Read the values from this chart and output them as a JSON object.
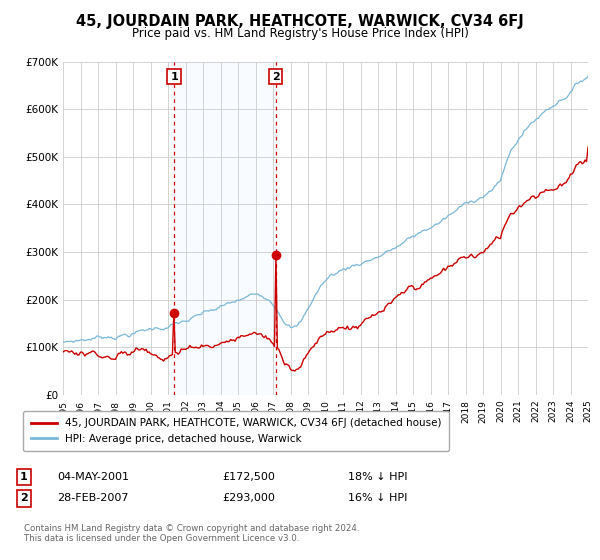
{
  "title": "45, JOURDAIN PARK, HEATHCOTE, WARWICK, CV34 6FJ",
  "subtitle": "Price paid vs. HM Land Registry's House Price Index (HPI)",
  "ylim": [
    0,
    700000
  ],
  "yticks": [
    0,
    100000,
    200000,
    300000,
    400000,
    500000,
    600000,
    700000
  ],
  "ytick_labels": [
    "£0",
    "£100K",
    "£200K",
    "£300K",
    "£400K",
    "£500K",
    "£600K",
    "£700K"
  ],
  "hpi_color": "#7ab8d9",
  "price_color": "#cc0000",
  "marker1_date_num": 2001.35,
  "marker1_price": 172500,
  "marker2_date_num": 2007.16,
  "marker2_price": 293000,
  "sale1_label": "1",
  "sale1_date": "04-MAY-2001",
  "sale1_price": "£172,500",
  "sale1_hpi": "18% ↓ HPI",
  "sale2_label": "2",
  "sale2_date": "28-FEB-2007",
  "sale2_price": "£293,000",
  "sale2_hpi": "16% ↓ HPI",
  "legend_line1": "45, JOURDAIN PARK, HEATHCOTE, WARWICK, CV34 6FJ (detached house)",
  "legend_line2": "HPI: Average price, detached house, Warwick",
  "footer1": "Contains HM Land Registry data © Crown copyright and database right 2024.",
  "footer2": "This data is licensed under the Open Government Licence v3.0.",
  "background_color": "#ffffff",
  "grid_color": "#cccccc",
  "shade_color": "#ddeeff",
  "xlim_start": 1995,
  "xlim_end": 2025
}
